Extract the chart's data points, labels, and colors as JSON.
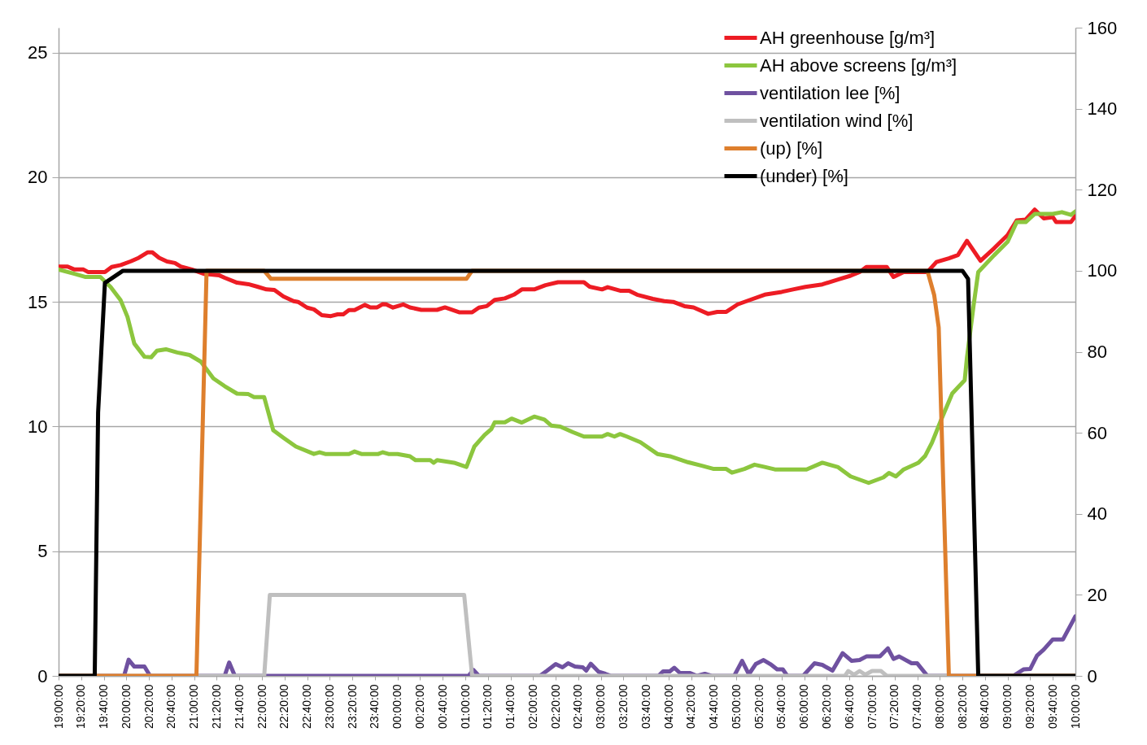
{
  "chart_data": {
    "type": "line",
    "legend": "top right",
    "grid": "y",
    "xlim": [
      "2000-01-01T19:00",
      "2000-01-02T10:00"
    ],
    "xticks": [
      {
        "value": "2000-01-01T19:00",
        "label": "19:00:00"
      },
      {
        "value": "2000-01-01T19:20",
        "label": "19:20:00"
      },
      {
        "value": "2000-01-01T19:40",
        "label": "19:40:00"
      },
      {
        "value": "2000-01-01T20:00",
        "label": "20:00:00"
      },
      {
        "value": "2000-01-01T20:20",
        "label": "20:20:00"
      },
      {
        "value": "2000-01-01T20:40",
        "label": "20:40:00"
      },
      {
        "value": "2000-01-01T21:00",
        "label": "21:00:00"
      },
      {
        "value": "2000-01-01T21:20",
        "label": "21:20:00"
      },
      {
        "value": "2000-01-01T21:40",
        "label": "21:40:00"
      },
      {
        "value": "2000-01-01T22:00",
        "label": "22:00:00"
      },
      {
        "value": "2000-01-01T22:20",
        "label": "22:20:00"
      },
      {
        "value": "2000-01-01T22:40",
        "label": "22:40:00"
      },
      {
        "value": "2000-01-01T23:00",
        "label": "23:00:00"
      },
      {
        "value": "2000-01-01T23:20",
        "label": "23:20:00"
      },
      {
        "value": "2000-01-01T23:40",
        "label": "23:40:00"
      },
      {
        "value": "2000-01-02T00:00",
        "label": "00:00:00"
      },
      {
        "value": "2000-01-02T00:20",
        "label": "00:20:00"
      },
      {
        "value": "2000-01-02T00:40",
        "label": "00:40:00"
      },
      {
        "value": "2000-01-02T01:00",
        "label": "01:00:00"
      },
      {
        "value": "2000-01-02T01:20",
        "label": "01:20:00"
      },
      {
        "value": "2000-01-02T01:40",
        "label": "01:40:00"
      },
      {
        "value": "2000-01-02T02:00",
        "label": "02:00:00"
      },
      {
        "value": "2000-01-02T02:20",
        "label": "02:20:00"
      },
      {
        "value": "2000-01-02T02:40",
        "label": "02:40:00"
      },
      {
        "value": "2000-01-02T03:00",
        "label": "03:00:00"
      },
      {
        "value": "2000-01-02T03:20",
        "label": "03:20:00"
      },
      {
        "value": "2000-01-02T03:40",
        "label": "03:40:00"
      },
      {
        "value": "2000-01-02T04:00",
        "label": "04:00:00"
      },
      {
        "value": "2000-01-02T04:20",
        "label": "04:20:00"
      },
      {
        "value": "2000-01-02T04:40",
        "label": "04:40:00"
      },
      {
        "value": "2000-01-02T05:00",
        "label": "05:00:00"
      },
      {
        "value": "2000-01-02T05:20",
        "label": "05:20:00"
      },
      {
        "value": "2000-01-02T05:40",
        "label": "05:40:00"
      },
      {
        "value": "2000-01-02T06:00",
        "label": "06:00:00"
      },
      {
        "value": "2000-01-02T06:20",
        "label": "06:20:00"
      },
      {
        "value": "2000-01-02T06:40",
        "label": "06:40:00"
      },
      {
        "value": "2000-01-02T07:00",
        "label": "07:00:00"
      },
      {
        "value": "2000-01-02T07:20",
        "label": "07:20:00"
      },
      {
        "value": "2000-01-02T07:40",
        "label": "07:40:00"
      },
      {
        "value": "2000-01-02T08:00",
        "label": "08:00:00"
      },
      {
        "value": "2000-01-02T08:20",
        "label": "08:20:00"
      },
      {
        "value": "2000-01-02T08:40",
        "label": "08:40:00"
      },
      {
        "value": "2000-01-02T09:00",
        "label": "09:00:00"
      },
      {
        "value": "2000-01-02T09:20",
        "label": "09:20:00"
      },
      {
        "value": "2000-01-02T09:40",
        "label": "09:40:00"
      },
      {
        "value": "2000-01-02T10:00",
        "label": "10:00:00"
      }
    ],
    "ylim": [
      0,
      26
    ],
    "yticks": [
      0,
      5,
      10,
      15,
      20,
      25
    ],
    "y2lim": [
      0,
      160
    ],
    "y2ticks": [
      0,
      20,
      40,
      60,
      80,
      100,
      120,
      140,
      160
    ],
    "series": [
      {
        "name": "AH greenhouse [g/m³]",
        "color": "#ed1c24",
        "x": [
          "2000-01-01T19:00",
          "2000-01-01T19:08",
          "2000-01-01T19:14",
          "2000-01-01T19:22",
          "2000-01-01T19:26",
          "2000-01-01T19:41",
          "2000-01-01T19:47",
          "2000-01-01T19:55",
          "2000-01-01T20:04",
          "2000-01-01T20:11",
          "2000-01-01T20:19",
          "2000-01-01T20:23",
          "2000-01-01T20:29",
          "2000-01-01T20:36",
          "2000-01-01T20:43",
          "2000-01-01T20:48",
          "2000-01-01T20:58",
          "2000-01-01T21:09",
          "2000-01-01T21:22",
          "2000-01-01T21:27",
          "2000-01-01T21:38",
          "2000-01-01T21:48",
          "2000-01-01T21:56",
          "2000-01-01T22:04",
          "2000-01-01T22:11",
          "2000-01-01T22:19",
          "2000-01-01T22:28",
          "2000-01-01T22:32",
          "2000-01-01T22:40",
          "2000-01-01T22:46",
          "2000-01-01T22:53",
          "2000-01-01T23:01",
          "2000-01-01T23:07",
          "2000-01-01T23:12",
          "2000-01-01T23:17",
          "2000-01-01T23:22",
          "2000-01-01T23:31",
          "2000-01-01T23:36",
          "2000-01-01T23:42",
          "2000-01-01T23:47",
          "2000-01-01T23:50",
          "2000-01-01T23:56",
          "2000-01-02T00:05",
          "2000-01-02T00:11",
          "2000-01-02T00:21",
          "2000-01-02T00:35",
          "2000-01-02T00:42",
          "2000-01-02T00:55",
          "2000-01-02T01:06",
          "2000-01-02T01:12",
          "2000-01-02T01:19",
          "2000-01-02T01:26",
          "2000-01-02T01:35",
          "2000-01-02T01:43",
          "2000-01-02T01:50",
          "2000-01-02T02:01",
          "2000-01-02T02:11",
          "2000-01-02T02:22",
          "2000-01-02T02:45",
          "2000-01-02T02:50",
          "2000-01-02T03:01",
          "2000-01-02T03:06",
          "2000-01-02T03:17",
          "2000-01-02T03:25",
          "2000-01-02T03:32",
          "2000-01-02T03:46",
          "2000-01-02T03:56",
          "2000-01-02T04:04",
          "2000-01-02T04:14",
          "2000-01-02T04:22",
          "2000-01-02T04:35",
          "2000-01-02T04:43",
          "2000-01-02T04:51",
          "2000-01-02T05:01",
          "2000-01-02T05:12",
          "2000-01-02T05:25",
          "2000-01-02T05:40",
          "2000-01-02T05:50",
          "2000-01-02T06:01",
          "2000-01-02T06:16",
          "2000-01-02T06:30",
          "2000-01-02T06:41",
          "2000-01-02T06:49",
          "2000-01-02T06:55",
          "2000-01-02T07:13",
          "2000-01-02T07:19",
          "2000-01-02T07:28",
          "2000-01-02T07:49",
          "2000-01-02T07:57",
          "2000-01-02T08:08",
          "2000-01-02T08:16",
          "2000-01-02T08:24",
          "2000-01-02T08:36",
          "2000-01-02T08:48",
          "2000-01-02T09:00",
          "2000-01-02T09:08",
          "2000-01-02T09:16",
          "2000-01-02T09:24",
          "2000-01-02T09:32",
          "2000-01-02T09:40",
          "2000-01-02T09:43",
          "2000-01-02T09:56",
          "2000-01-02T10:00"
        ],
        "values": [
          16.42,
          16.42,
          16.3,
          16.3,
          16.2,
          16.2,
          16.4,
          16.48,
          16.63,
          16.77,
          16.99,
          16.99,
          16.77,
          16.62,
          16.56,
          16.42,
          16.3,
          16.12,
          16.07,
          15.97,
          15.77,
          15.71,
          15.61,
          15.5,
          15.48,
          15.22,
          15.03,
          15,
          14.77,
          14.7,
          14.47,
          14.43,
          14.5,
          14.5,
          14.67,
          14.67,
          14.88,
          14.78,
          14.78,
          14.91,
          14.9,
          14.77,
          14.9,
          14.78,
          14.68,
          14.68,
          14.78,
          14.58,
          14.58,
          14.77,
          14.83,
          15.08,
          15.14,
          15.29,
          15.5,
          15.5,
          15.67,
          15.79,
          15.79,
          15.61,
          15.5,
          15.59,
          15.45,
          15.45,
          15.29,
          15.12,
          15.03,
          15,
          14.83,
          14.78,
          14.52,
          14.6,
          14.6,
          14.9,
          15.08,
          15.29,
          15.4,
          15.5,
          15.6,
          15.7,
          15.9,
          16.05,
          16.2,
          16.4,
          16.4,
          16,
          16.2,
          16.2,
          16.6,
          16.75,
          16.88,
          17.45,
          16.65,
          17.15,
          17.68,
          18.27,
          18.3,
          18.7,
          18.35,
          18.4,
          18.2,
          18.2,
          18.45
        ]
      },
      {
        "name": "AH above screens [g/m³]",
        "color": "#8cc63e",
        "x": [
          "2000-01-01T19:00",
          "2000-01-01T19:14",
          "2000-01-01T19:24",
          "2000-01-01T19:37",
          "2000-01-01T19:46",
          "2000-01-01T19:55",
          "2000-01-01T20:01",
          "2000-01-01T20:07",
          "2000-01-01T20:16",
          "2000-01-01T20:22",
          "2000-01-01T20:27",
          "2000-01-01T20:35",
          "2000-01-01T20:45",
          "2000-01-01T20:56",
          "2000-01-01T21:06",
          "2000-01-01T21:17",
          "2000-01-01T21:27",
          "2000-01-01T21:38",
          "2000-01-01T21:48",
          "2000-01-01T21:53",
          "2000-01-01T22:02",
          "2000-01-01T22:10",
          "2000-01-01T22:19",
          "2000-01-01T22:30",
          "2000-01-01T22:46",
          "2000-01-01T22:51",
          "2000-01-01T22:56",
          "2000-01-01T23:17",
          "2000-01-01T23:22",
          "2000-01-01T23:28",
          "2000-01-01T23:43",
          "2000-01-01T23:47",
          "2000-01-01T23:52",
          "2000-01-02T00:00",
          "2000-01-02T00:11",
          "2000-01-02T00:16",
          "2000-01-02T00:29",
          "2000-01-02T00:32",
          "2000-01-02T00:35",
          "2000-01-02T00:50",
          "2000-01-02T01:01",
          "2000-01-02T01:08",
          "2000-01-02T01:17",
          "2000-01-02T01:23",
          "2000-01-02T01:26",
          "2000-01-02T01:35",
          "2000-01-02T01:41",
          "2000-01-02T01:50",
          "2000-01-02T02:01",
          "2000-01-02T02:10",
          "2000-01-02T02:16",
          "2000-01-02T02:24",
          "2000-01-02T02:35",
          "2000-01-02T02:45",
          "2000-01-02T03:01",
          "2000-01-02T03:06",
          "2000-01-02T03:12",
          "2000-01-02T03:17",
          "2000-01-02T03:23",
          "2000-01-02T03:35",
          "2000-01-02T03:50",
          "2000-01-02T04:01",
          "2000-01-02T04:17",
          "2000-01-02T04:30",
          "2000-01-02T04:40",
          "2000-01-02T04:51",
          "2000-01-02T04:56",
          "2000-01-02T05:07",
          "2000-01-02T05:16",
          "2000-01-02T05:25",
          "2000-01-02T05:34",
          "2000-01-02T06:02",
          "2000-01-02T06:16",
          "2000-01-02T06:30",
          "2000-01-02T06:41",
          "2000-01-02T06:57",
          "2000-01-02T07:10",
          "2000-01-02T07:15",
          "2000-01-02T07:21",
          "2000-01-02T07:28",
          "2000-01-02T07:41",
          "2000-01-02T07:47",
          "2000-01-02T07:53",
          "2000-01-02T08:01",
          "2000-01-02T08:11",
          "2000-01-02T08:22",
          "2000-01-02T08:24",
          "2000-01-02T08:30",
          "2000-01-02T08:34",
          "2000-01-02T08:48",
          "2000-01-02T09:00",
          "2000-01-02T09:08",
          "2000-01-02T09:16",
          "2000-01-02T09:24",
          "2000-01-02T09:40",
          "2000-01-02T09:48",
          "2000-01-02T09:56",
          "2000-01-02T10:00"
        ],
        "values": [
          16.3,
          16.13,
          16,
          16,
          15.6,
          15.06,
          14.4,
          13.33,
          12.8,
          12.78,
          13.04,
          13.1,
          12.97,
          12.87,
          12.6,
          11.93,
          11.62,
          11.32,
          11.3,
          11.18,
          11.18,
          9.85,
          9.55,
          9.2,
          8.9,
          8.97,
          8.9,
          8.9,
          9,
          8.9,
          8.9,
          8.97,
          8.9,
          8.9,
          8.81,
          8.65,
          8.65,
          8.55,
          8.65,
          8.55,
          8.38,
          9.2,
          9.66,
          9.9,
          10.17,
          10.17,
          10.32,
          10.16,
          10.4,
          10.28,
          10.04,
          10,
          9.78,
          9.6,
          9.6,
          9.7,
          9.6,
          9.7,
          9.6,
          9.37,
          8.9,
          8.81,
          8.57,
          8.42,
          8.3,
          8.3,
          8.15,
          8.3,
          8.47,
          8.38,
          8.28,
          8.28,
          8.55,
          8.37,
          8,
          7.74,
          7.96,
          8.14,
          8,
          8.28,
          8.55,
          8.82,
          9.35,
          10.25,
          11.33,
          11.86,
          12.76,
          14.9,
          16.2,
          16.87,
          17.41,
          18.2,
          18.2,
          18.53,
          18.53,
          18.6,
          18.49,
          18.63
        ]
      },
      {
        "name": "ventilation lee [%]",
        "color": "#6f51a0",
        "axis": "y2",
        "x": [
          "2000-01-01T19:00",
          "2000-01-01T19:58",
          "2000-01-01T20:02",
          "2000-01-01T20:07",
          "2000-01-01T20:16",
          "2000-01-01T20:21",
          "2000-01-01T21:27",
          "2000-01-01T21:31",
          "2000-01-01T21:36",
          "2000-01-02T01:03",
          "2000-01-02T01:07",
          "2000-01-02T01:12",
          "2000-01-02T02:06",
          "2000-01-02T02:12",
          "2000-01-02T02:20",
          "2000-01-02T02:26",
          "2000-01-02T02:31",
          "2000-01-02T02:37",
          "2000-01-02T02:44",
          "2000-01-02T02:47",
          "2000-01-02T02:51",
          "2000-01-02T02:58",
          "2000-01-02T03:04",
          "2000-01-02T03:09",
          "2000-01-02T03:51",
          "2000-01-02T03:55",
          "2000-01-02T04:01",
          "2000-01-02T04:05",
          "2000-01-02T04:10",
          "2000-01-02T04:19",
          "2000-01-02T04:25",
          "2000-01-02T04:32",
          "2000-01-02T04:38",
          "2000-01-02T04:58",
          "2000-01-02T05:05",
          "2000-01-02T05:11",
          "2000-01-02T05:17",
          "2000-01-02T05:24",
          "2000-01-02T05:30",
          "2000-01-02T05:36",
          "2000-01-02T05:41",
          "2000-01-02T05:45",
          "2000-01-02T05:59",
          "2000-01-02T06:09",
          "2000-01-02T06:16",
          "2000-01-02T06:25",
          "2000-01-02T06:34",
          "2000-01-02T06:42",
          "2000-01-02T06:49",
          "2000-01-02T06:55",
          "2000-01-02T07:07",
          "2000-01-02T07:14",
          "2000-01-02T07:19",
          "2000-01-02T07:24",
          "2000-01-02T07:35",
          "2000-01-02T07:40",
          "2000-01-02T07:49",
          "2000-01-02T09:05",
          "2000-01-02T09:14",
          "2000-01-02T09:20",
          "2000-01-02T09:26",
          "2000-01-02T09:32",
          "2000-01-02T09:40",
          "2000-01-02T09:49",
          "2000-01-02T10:00"
        ],
        "values": [
          0,
          0,
          4,
          2.3,
          2.3,
          0,
          0,
          3.3,
          0,
          0,
          1.5,
          0,
          0,
          1.2,
          2.9,
          2.1,
          3.1,
          2.3,
          2.1,
          1.3,
          3,
          1,
          0.5,
          0,
          0,
          1.1,
          1.1,
          2,
          0.7,
          0.7,
          0,
          0.5,
          0,
          0,
          3.7,
          0.4,
          2.9,
          3.9,
          2.9,
          1.6,
          1.6,
          0,
          0,
          3.1,
          2.7,
          1.3,
          5.6,
          3.7,
          3.9,
          4.8,
          4.8,
          6.8,
          4.2,
          4.8,
          3.1,
          3.1,
          0,
          0,
          1.6,
          1.7,
          5,
          6.5,
          9,
          9,
          14.7
        ]
      },
      {
        "name": "ventilation wind [%]",
        "color": "#bfbfbf",
        "axis": "y2",
        "x": [
          "2000-01-01T19:00",
          "2000-01-01T22:02",
          "2000-01-01T22:07",
          "2000-01-02T00:59",
          "2000-01-02T01:06",
          "2000-01-02T06:36",
          "2000-01-02T06:39",
          "2000-01-02T06:44",
          "2000-01-02T06:49",
          "2000-01-02T06:54",
          "2000-01-02T07:00",
          "2000-01-02T07:08",
          "2000-01-02T07:13",
          "2000-01-02T10:00"
        ],
        "values": [
          0,
          0,
          20,
          20,
          0,
          0,
          1.2,
          0.3,
          1.2,
          0.3,
          1.2,
          1.2,
          0,
          0
        ]
      },
      {
        "name": "(up) [%]",
        "color": "#de7f2d",
        "axis": "y2",
        "x": [
          "2000-01-01T19:00",
          "2000-01-01T21:02",
          "2000-01-01T21:11",
          "2000-01-01T22:02",
          "2000-01-01T22:08",
          "2000-01-02T01:01",
          "2000-01-02T01:06",
          "2000-01-02T07:49",
          "2000-01-02T07:55",
          "2000-01-02T07:59",
          "2000-01-02T08:08",
          "2000-01-02T10:00"
        ],
        "values": [
          0,
          0,
          100,
          100,
          98,
          98,
          100,
          100,
          94,
          86,
          0,
          0
        ]
      },
      {
        "name": "(under) [%]",
        "color": "#000000",
        "axis": "y2",
        "x": [
          "2000-01-01T19:00",
          "2000-01-01T19:32",
          "2000-01-01T19:35",
          "2000-01-01T19:41",
          "2000-01-01T19:57",
          "2000-01-02T08:20",
          "2000-01-02T08:25",
          "2000-01-02T08:34",
          "2000-01-02T10:00"
        ],
        "values": [
          0,
          0,
          65,
          97,
          100,
          100,
          98,
          0,
          0
        ]
      }
    ]
  }
}
